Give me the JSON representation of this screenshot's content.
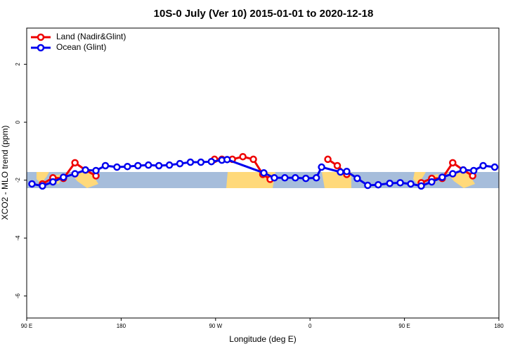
{
  "chart_data": {
    "type": "line",
    "title": "10S-0 July (Ver 10)   2015-01-01 to 2020-12-18",
    "x_label": "Longitude (deg E)",
    "y_label": "XCO2 - MLO trend (ppm)",
    "xlim": [
      90,
      540
    ],
    "ylim": [
      -6.76,
      3.25
    ],
    "xticks": [
      {
        "value": 90,
        "label": "90 E"
      },
      180,
      {
        "value": 270,
        "label": "90 W"
      },
      {
        "value": 360,
        "label": "0"
      },
      {
        "value": 450,
        "label": "90 E"
      },
      {
        "value": 540,
        "label": "180"
      }
    ],
    "yticks": [
      2,
      0,
      -2,
      -4,
      -6
    ],
    "legend": "top-left",
    "series": [
      {
        "name": "Land (Nadir&Glint)",
        "color": "#ee0000",
        "x": [
          105,
          115,
          125,
          136,
          146,
          156,
          null,
          269,
          276,
          286,
          296,
          306,
          315,
          322,
          null,
          377,
          386,
          395,
          null,
          466,
          476,
          486,
          496,
          506,
          515
        ],
        "values": [
          -2.13,
          -1.92,
          -1.94,
          -1.4,
          -1.65,
          -1.85,
          null,
          -1.28,
          -1.28,
          -1.28,
          -1.19,
          -1.28,
          -1.8,
          -1.97,
          null,
          -1.28,
          -1.5,
          -1.8,
          null,
          -2.09,
          -1.94,
          -1.94,
          -1.4,
          -1.65,
          -1.85
        ]
      },
      {
        "name": "Ocean (Glint)",
        "color": "#0000ee",
        "x": [
          95,
          105,
          115,
          125,
          136,
          146,
          156,
          165,
          176,
          186,
          196,
          206,
          216,
          226,
          236,
          246,
          256,
          266,
          276,
          281,
          316,
          326,
          336,
          346,
          356,
          366,
          371,
          389,
          395,
          405,
          415,
          425,
          436,
          446,
          456,
          466,
          476,
          486,
          496,
          506,
          516,
          525,
          536
        ],
        "values": [
          -2.13,
          -2.2,
          -2.06,
          -1.9,
          -1.78,
          -1.65,
          -1.67,
          -1.5,
          -1.55,
          -1.53,
          -1.5,
          -1.48,
          -1.5,
          -1.48,
          -1.43,
          -1.38,
          -1.38,
          -1.36,
          -1.31,
          -1.29,
          -1.75,
          -1.92,
          -1.92,
          -1.92,
          -1.94,
          -1.92,
          -1.55,
          -1.72,
          -1.7,
          -1.94,
          -2.18,
          -2.16,
          -2.11,
          -2.09,
          -2.13,
          -2.2,
          -2.06,
          -1.9,
          -1.78,
          -1.65,
          -1.67,
          -1.5,
          -1.55
        ]
      }
    ]
  }
}
